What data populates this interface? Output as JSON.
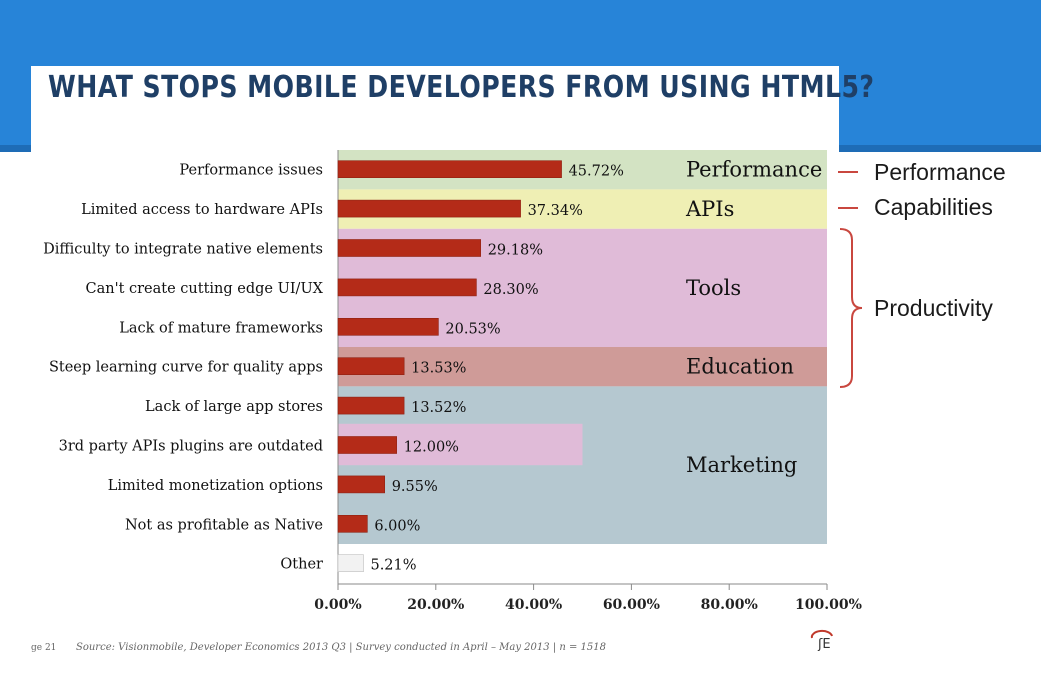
{
  "slide_title": "WHAT STOPS MOBILE DEVELOPERS FROM USING HTML5?",
  "chart_data": {
    "type": "bar",
    "orientation": "horizontal",
    "categories": [
      "Performance issues",
      "Limited access to hardware APIs",
      "Difficulty to integrate native elements",
      "Can't create cutting edge UI/UX",
      "Lack of mature frameworks",
      "Steep learning curve for quality apps",
      "Lack of large app stores",
      "3rd party APIs plugins are outdated",
      "Limited monetization options",
      "Not as profitable as Native",
      "Other"
    ],
    "values": [
      45.72,
      37.34,
      29.18,
      28.3,
      20.53,
      13.53,
      13.52,
      12.0,
      9.55,
      6.0,
      5.21
    ],
    "value_labels": [
      "45.72%",
      "37.34%",
      "29.18%",
      "28.30%",
      "20.53%",
      "13.53%",
      "13.52%",
      "12.00%",
      "9.55%",
      "6.00%",
      "5.21%"
    ],
    "xlim": [
      0,
      100
    ],
    "xticks": [
      0,
      20,
      40,
      60,
      80,
      100
    ],
    "xtick_labels": [
      "0.00%",
      "20.00%",
      "40.00%",
      "60.00%",
      "80.00%",
      "100.00%"
    ],
    "bar_color": "#b42b18",
    "other_bar_color": "#f2f2f2",
    "groups": [
      {
        "label": "Performance",
        "rows": [
          0,
          0
        ],
        "color": "#d3e3c3"
      },
      {
        "label": "APIs",
        "rows": [
          1,
          1
        ],
        "color": "#efefb4"
      },
      {
        "label": "Tools",
        "rows": [
          2,
          4
        ],
        "color": "#e0bbd8"
      },
      {
        "label": "Education",
        "rows": [
          5,
          5
        ],
        "color": "#cf9b98"
      },
      {
        "label": "Marketing",
        "rows": [
          6,
          9
        ],
        "color": "#b5c8d0"
      }
    ]
  },
  "side_labels": {
    "performance": "Performance",
    "capabilities": "Capabilities",
    "productivity": "Productivity"
  },
  "footer": {
    "page": "ge 21",
    "source": "Source: Visionmobile, Developer Economics 2013 Q3 | Survey conducted in April – May 2013 | n = 1518"
  },
  "colors": {
    "banner": "#2784d8",
    "title": "#1f3f66",
    "bracket": "#c9473f"
  }
}
